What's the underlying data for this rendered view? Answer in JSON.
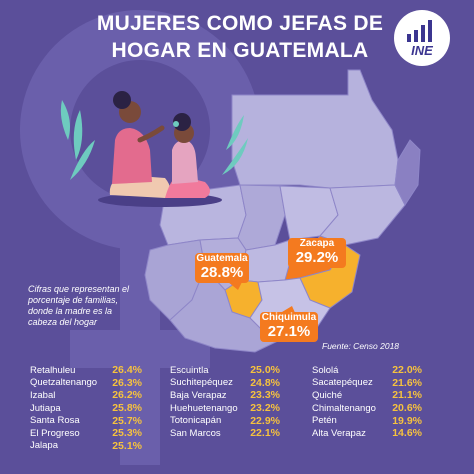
{
  "title_line1": "MUJERES COMO JEFAS DE",
  "title_line2": "HOGAR EN GUATEMALA",
  "logo_text": "INE",
  "logo_icon": "bar-chart-icon",
  "illustration": "mother-combing-daughter-hair",
  "colors": {
    "background": "#5b4f9a",
    "map_fill": "#b6b2dd",
    "highlight_high": "#f47a1f",
    "highlight_mid": "#f6b12d",
    "value_text": "#f6c23e"
  },
  "callouts": [
    {
      "name": "Guatemala",
      "value": "28.8%"
    },
    {
      "name": "Zacapa",
      "value": "29.2%"
    },
    {
      "name": "Chiquimula",
      "value": "27.1%"
    }
  ],
  "note": "Cifras que representan el porcentaje de familias, donde la madre es la cabeza del hogar",
  "source": "Fuente: Censo 2018",
  "columns": [
    [
      {
        "name": "Retalhuleu",
        "value": "26.4%"
      },
      {
        "name": "Quetzaltenango",
        "value": "26.3%"
      },
      {
        "name": "Izabal",
        "value": "26.2%"
      },
      {
        "name": "Jutiapa",
        "value": "25.8%"
      },
      {
        "name": "Santa Rosa",
        "value": "25.7%"
      },
      {
        "name": "El Progreso",
        "value": "25.3%"
      },
      {
        "name": "Jalapa",
        "value": "25.1%"
      }
    ],
    [
      {
        "name": "Escuintla",
        "value": "25.0%"
      },
      {
        "name": "Suchitepéquez",
        "value": "24.8%"
      },
      {
        "name": "Baja Verapaz",
        "value": "23.3%"
      },
      {
        "name": "Huehuetenango",
        "value": "23.2%"
      },
      {
        "name": "Totonicapán",
        "value": "22.9%"
      },
      {
        "name": "San Marcos",
        "value": "22.1%"
      }
    ],
    [
      {
        "name": "Sololá",
        "value": "22.0%"
      },
      {
        "name": "Sacatepéquez",
        "value": "21.6%"
      },
      {
        "name": "Quiché",
        "value": "21.1%"
      },
      {
        "name": "Chimaltenango",
        "value": "20.6%"
      },
      {
        "name": "Petén",
        "value": "19.9%"
      },
      {
        "name": "Alta Verapaz",
        "value": "14.6%"
      }
    ]
  ]
}
